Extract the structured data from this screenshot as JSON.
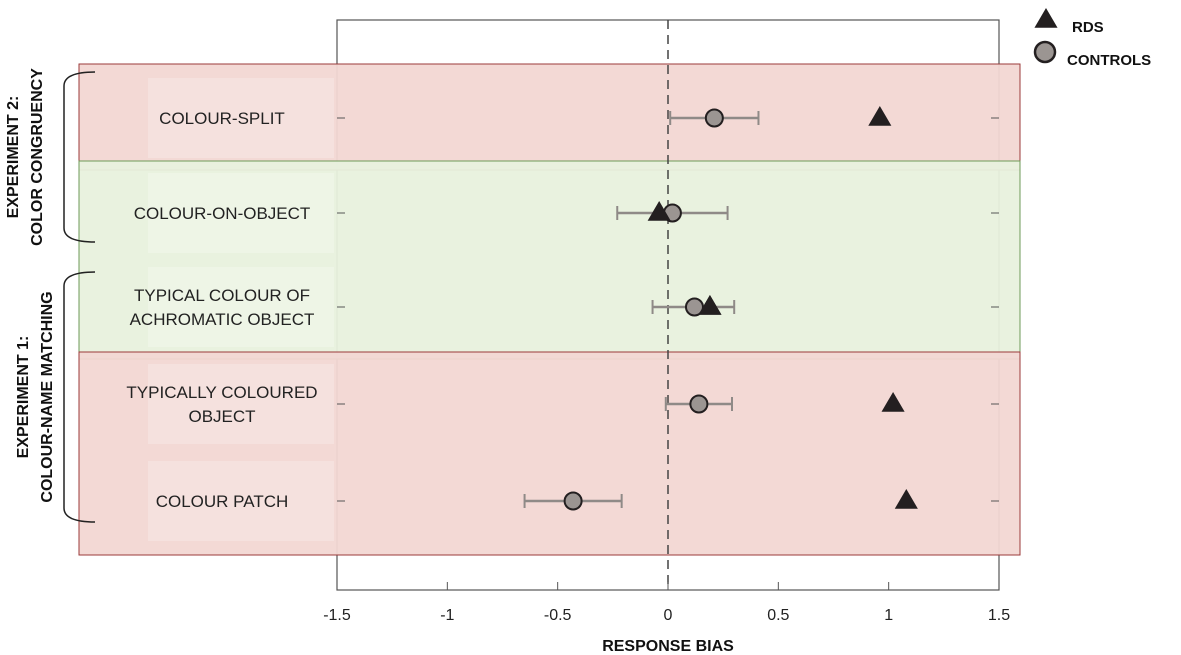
{
  "chart_data": {
    "type": "scatter",
    "xlabel": "RESPONSE BIAS",
    "xlim": [
      -1.5,
      1.5
    ],
    "xticks": [
      "-1.5",
      "-1",
      "-0.5",
      "0",
      "0.5",
      "1",
      "1.5"
    ],
    "reference_line_x": 0,
    "categories": [
      [
        "COLOUR-SPLIT"
      ],
      [
        "COLOUR-ON-OBJECT"
      ],
      [
        "TYPICAL COLOUR OF",
        "ACHROMATIC OBJECT"
      ],
      [
        "TYPICALLY COLOURED",
        "OBJECT"
      ],
      [
        "COLOUR PATCH"
      ]
    ],
    "groups": [
      {
        "label": [
          "EXPERIMENT 2:",
          "COLOR CONGRUENCY"
        ],
        "categories": [
          0,
          1
        ]
      },
      {
        "label": [
          "EXPERIMENT 1:",
          "COLOUR-NAME MATCHING"
        ],
        "categories": [
          2,
          3,
          4
        ]
      }
    ],
    "bands": [
      {
        "color": "#f2d7d3",
        "border": "#9b3a3a",
        "categories": [
          0
        ]
      },
      {
        "color": "#e8f1dd",
        "border": "#6e9a58",
        "categories": [
          1,
          2
        ]
      },
      {
        "color": "#f2d7d3",
        "border": "#9b3a3a",
        "categories": [
          3,
          4
        ]
      }
    ],
    "series": [
      {
        "name": "RDS",
        "marker": "triangle",
        "color": "#231f20",
        "values": [
          0.96,
          -0.04,
          0.19,
          1.02,
          1.08
        ]
      },
      {
        "name": "CONTROLS",
        "marker": "circle",
        "color": "#9b9592",
        "values": [
          0.21,
          0.02,
          0.12,
          0.14,
          -0.43
        ],
        "error_low": [
          0.01,
          -0.23,
          -0.07,
          -0.01,
          -0.65
        ],
        "error_high": [
          0.41,
          0.27,
          0.3,
          0.29,
          -0.21
        ]
      }
    ],
    "legend": "top-right"
  }
}
